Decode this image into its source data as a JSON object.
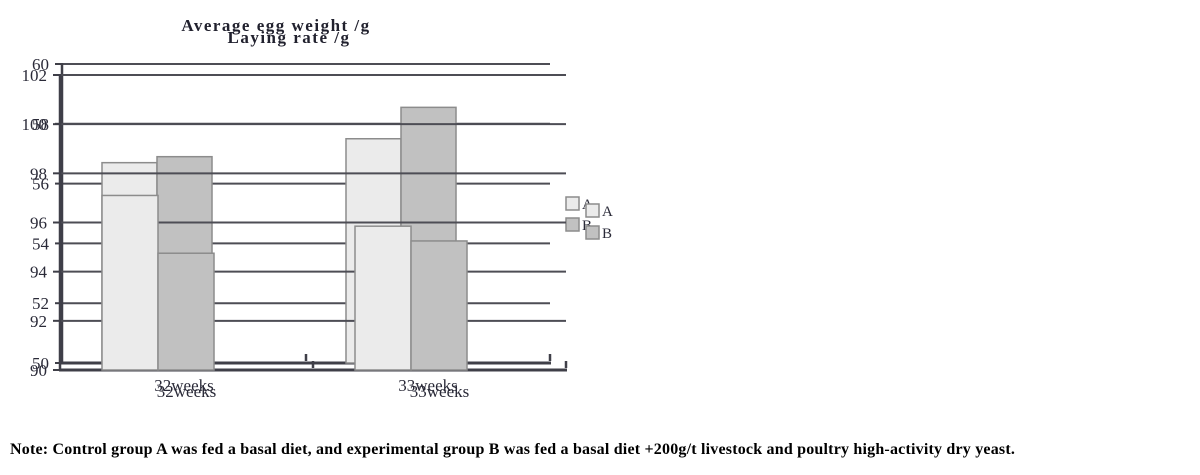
{
  "note": "Note: Control group A was fed a basal diet, and experimental group B was fed a basal diet +200g/t livestock and poultry high-activity dry yeast.",
  "colors": {
    "series_fills": [
      "#ebebeb",
      "#c1c1c1"
    ],
    "bar_border": "#8c8c8c",
    "grid": "#4d4d55",
    "axis": "#3f3f48",
    "text": "#2a2a38",
    "background": "#ffffff"
  },
  "chart_data": [
    {
      "type": "bar",
      "title": "Average egg weight /g",
      "categories": [
        "32weeks",
        "33weeks"
      ],
      "series": [
        {
          "name": "A",
          "values": [
            56.7,
            57.5
          ]
        },
        {
          "name": "B",
          "values": [
            56.9,
            58.55
          ]
        }
      ],
      "ylim": [
        50,
        60
      ],
      "ystep": 2,
      "yticks": [
        50,
        52,
        54,
        56,
        58,
        60
      ],
      "xlabel": "",
      "ylabel": "",
      "grid": true,
      "legend": [
        "A",
        "B"
      ],
      "legend_position": "right"
    },
    {
      "type": "bar",
      "title": "Laying rate /g",
      "categories": [
        "32weeks",
        "33weeks"
      ],
      "series": [
        {
          "name": "A",
          "values": [
            97.1,
            95.85
          ]
        },
        {
          "name": "B",
          "values": [
            94.75,
            95.25
          ]
        }
      ],
      "ylim": [
        90,
        102
      ],
      "ystep": 2,
      "yticks": [
        90,
        92,
        94,
        96,
        98,
        100,
        102
      ],
      "xlabel": "",
      "ylabel": "",
      "grid": true,
      "legend": [
        "A",
        "B"
      ],
      "legend_position": "right"
    }
  ]
}
